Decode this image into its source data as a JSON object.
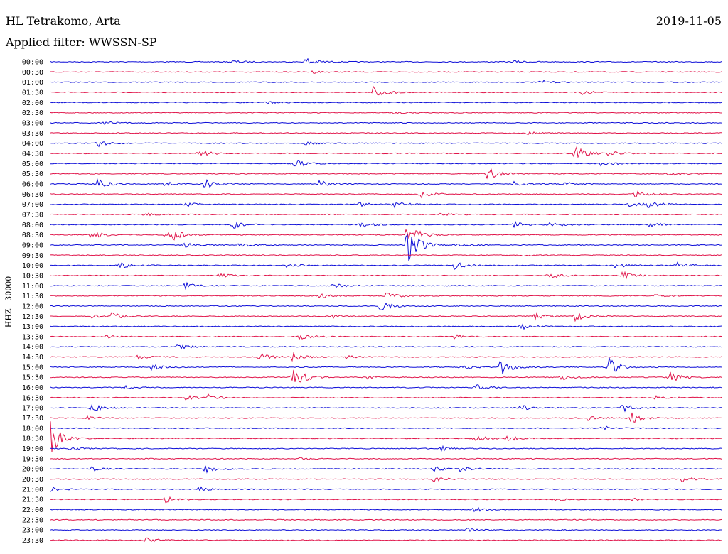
{
  "header": {
    "station": "HL Tetrakomo, Arta",
    "date": "2019-11-05",
    "filter": "Applied filter: WWSSN-SP"
  },
  "chart_data": {
    "type": "line",
    "title": "HL Tetrakomo, Arta",
    "ylabel": "HHZ - 30000",
    "colors": {
      "odd": "#1010d8",
      "even": "#e0144a"
    },
    "rows": [
      {
        "label": "00:00",
        "events": [
          [
            0.27,
            0.2
          ],
          [
            0.38,
            0.6
          ],
          [
            0.69,
            0.15
          ]
        ]
      },
      {
        "label": "00:30",
        "events": [
          [
            0.39,
            0.15
          ]
        ]
      },
      {
        "label": "01:00",
        "events": [
          [
            0.73,
            0.2
          ]
        ]
      },
      {
        "label": "01:30",
        "events": [
          [
            0.48,
            0.8
          ],
          [
            0.79,
            0.3
          ]
        ]
      },
      {
        "label": "02:00",
        "events": [
          [
            0.32,
            0.2
          ]
        ]
      },
      {
        "label": "02:30",
        "events": [
          [
            0.51,
            0.15
          ]
        ]
      },
      {
        "label": "03:00",
        "events": [
          [
            0.08,
            0.15
          ]
        ]
      },
      {
        "label": "03:30",
        "events": [
          [
            0.71,
            0.15
          ]
        ]
      },
      {
        "label": "04:00",
        "events": [
          [
            0.07,
            0.4
          ],
          [
            0.38,
            0.2
          ]
        ]
      },
      {
        "label": "04:30",
        "events": [
          [
            0.22,
            0.5
          ],
          [
            0.78,
            0.9
          ],
          [
            0.83,
            0.3
          ]
        ]
      },
      {
        "label": "05:00",
        "events": [
          [
            0.36,
            0.7
          ],
          [
            0.82,
            0.4
          ]
        ]
      },
      {
        "label": "05:30",
        "events": [
          [
            0.65,
            0.8
          ],
          [
            0.92,
            0.3
          ]
        ]
      },
      {
        "label": "06:00",
        "events": [
          [
            0.07,
            0.7
          ],
          [
            0.17,
            0.3
          ],
          [
            0.23,
            0.6
          ],
          [
            0.4,
            0.4
          ],
          [
            0.69,
            0.35
          ],
          [
            0.76,
            0.3
          ]
        ]
      },
      {
        "label": "06:30",
        "events": [
          [
            0.55,
            0.5
          ],
          [
            0.87,
            0.4
          ]
        ]
      },
      {
        "label": "07:00",
        "events": [
          [
            0.2,
            0.3
          ],
          [
            0.46,
            0.25
          ],
          [
            0.51,
            0.4
          ],
          [
            0.86,
            0.4
          ],
          [
            0.89,
            0.5
          ]
        ]
      },
      {
        "label": "07:30",
        "events": [
          [
            0.14,
            0.2
          ],
          [
            0.58,
            0.2
          ]
        ]
      },
      {
        "label": "08:00",
        "events": [
          [
            0.27,
            0.5
          ],
          [
            0.46,
            0.4
          ],
          [
            0.69,
            0.35
          ],
          [
            0.74,
            0.5
          ],
          [
            0.89,
            0.4
          ]
        ]
      },
      {
        "label": "08:30",
        "events": [
          [
            0.06,
            0.5
          ],
          [
            0.17,
            0.3
          ],
          [
            0.18,
            0.6
          ],
          [
            0.53,
            1.6
          ]
        ]
      },
      {
        "label": "09:00",
        "events": [
          [
            0.2,
            0.25
          ],
          [
            0.28,
            0.3
          ],
          [
            0.53,
            2.5
          ],
          [
            0.6,
            0.2
          ]
        ]
      },
      {
        "label": "09:30",
        "events": [
          [
            0.7,
            0.15
          ]
        ]
      },
      {
        "label": "10:00",
        "events": [
          [
            0.1,
            0.5
          ],
          [
            0.35,
            0.3
          ],
          [
            0.6,
            0.5
          ],
          [
            0.84,
            0.4
          ],
          [
            0.93,
            0.4
          ]
        ]
      },
      {
        "label": "10:30",
        "events": [
          [
            0.25,
            0.3
          ],
          [
            0.74,
            0.5
          ],
          [
            0.85,
            0.6
          ]
        ]
      },
      {
        "label": "11:00",
        "events": [
          [
            0.2,
            0.4
          ],
          [
            0.42,
            0.3
          ]
        ]
      },
      {
        "label": "11:30",
        "events": [
          [
            0.4,
            0.3
          ],
          [
            0.5,
            0.4
          ],
          [
            0.9,
            0.2
          ]
        ]
      },
      {
        "label": "12:00",
        "events": [
          [
            0.49,
            0.6
          ]
        ]
      },
      {
        "label": "12:30",
        "events": [
          [
            0.06,
            0.2
          ],
          [
            0.09,
            0.5
          ],
          [
            0.42,
            0.2
          ],
          [
            0.72,
            0.5
          ],
          [
            0.78,
            0.8
          ]
        ]
      },
      {
        "label": "13:00",
        "events": [
          [
            0.7,
            0.4
          ]
        ]
      },
      {
        "label": "13:30",
        "events": [
          [
            0.08,
            0.2
          ],
          [
            0.37,
            0.4
          ],
          [
            0.6,
            0.25
          ]
        ]
      },
      {
        "label": "14:00",
        "events": [
          [
            0.19,
            0.4
          ]
        ]
      },
      {
        "label": "14:30",
        "events": [
          [
            0.13,
            0.25
          ],
          [
            0.31,
            0.5
          ],
          [
            0.36,
            0.6
          ],
          [
            0.44,
            0.2
          ]
        ]
      },
      {
        "label": "15:00",
        "events": [
          [
            0.15,
            0.4
          ],
          [
            0.61,
            0.4
          ],
          [
            0.67,
            1.0
          ],
          [
            0.83,
            1.3
          ]
        ]
      },
      {
        "label": "15:30",
        "events": [
          [
            0.36,
            1.5
          ],
          [
            0.47,
            0.2
          ],
          [
            0.76,
            0.3
          ],
          [
            0.92,
            0.9
          ]
        ]
      },
      {
        "label": "16:00",
        "events": [
          [
            0.11,
            0.2
          ],
          [
            0.63,
            0.4
          ]
        ]
      },
      {
        "label": "16:30",
        "events": [
          [
            0.2,
            0.4
          ],
          [
            0.23,
            0.5
          ],
          [
            0.9,
            0.2
          ]
        ]
      },
      {
        "label": "17:00",
        "events": [
          [
            0.06,
            0.5
          ],
          [
            0.7,
            0.4
          ],
          [
            0.85,
            0.6
          ]
        ]
      },
      {
        "label": "17:30",
        "events": [
          [
            0.05,
            0.3
          ],
          [
            0.8,
            0.3
          ],
          [
            0.86,
            1.0
          ]
        ]
      },
      {
        "label": "18:00",
        "events": [
          [
            0.82,
            0.3
          ]
        ]
      },
      {
        "label": "18:30",
        "events": [
          [
            0.0,
            2.0
          ],
          [
            0.63,
            0.5
          ],
          [
            0.68,
            0.3
          ]
        ]
      },
      {
        "label": "19:00",
        "events": [
          [
            0.03,
            0.3
          ],
          [
            0.58,
            0.3
          ]
        ]
      },
      {
        "label": "19:30",
        "events": [
          [
            0.37,
            0.15
          ]
        ]
      },
      {
        "label": "20:00",
        "events": [
          [
            0.06,
            0.3
          ],
          [
            0.23,
            0.5
          ],
          [
            0.57,
            0.4
          ],
          [
            0.61,
            0.3
          ]
        ]
      },
      {
        "label": "20:30",
        "events": [
          [
            0.57,
            0.35
          ],
          [
            0.94,
            0.4
          ]
        ]
      },
      {
        "label": "21:00",
        "events": [
          [
            0.0,
            0.3
          ],
          [
            0.22,
            0.3
          ]
        ]
      },
      {
        "label": "21:30",
        "events": [
          [
            0.17,
            0.4
          ],
          [
            0.75,
            0.2
          ],
          [
            0.86,
            0.2
          ]
        ]
      },
      {
        "label": "22:00",
        "events": [
          [
            0.63,
            0.3
          ]
        ]
      },
      {
        "label": "22:30",
        "events": []
      },
      {
        "label": "23:00",
        "events": [
          [
            0.62,
            0.2
          ]
        ]
      },
      {
        "label": "23:30",
        "events": [
          [
            0.14,
            0.3
          ]
        ]
      }
    ]
  }
}
